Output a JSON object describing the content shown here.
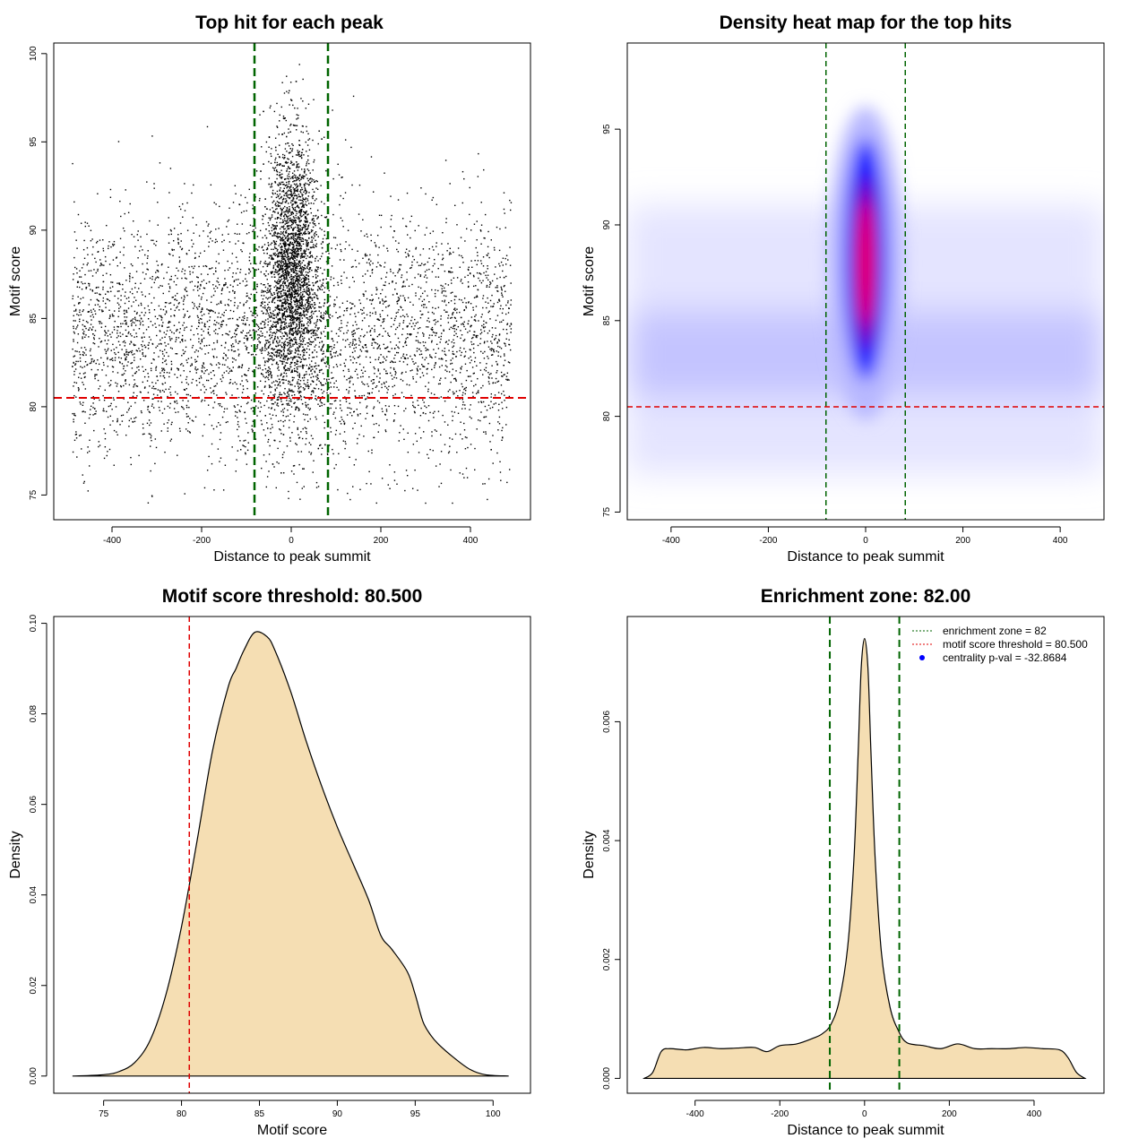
{
  "chart_data": [
    {
      "type": "scatter",
      "title": "Top hit for each peak",
      "xlabel": "Distance to peak summit",
      "ylabel": "Motif score",
      "xlim": [
        -530,
        534
      ],
      "ylim": [
        73.6,
        100.6
      ],
      "xticks": [
        "-400",
        "-200",
        "0",
        "200",
        "400"
      ],
      "xtick_values": [
        -400,
        -200,
        0,
        200,
        400
      ],
      "yticks": [
        "75",
        "80",
        "85",
        "90",
        "95",
        "100"
      ],
      "ytick_values": [
        75,
        80,
        85,
        90,
        95,
        100
      ],
      "point_cloud": {
        "background": {
          "x_range": [
            -490,
            490
          ],
          "y_mean": 84,
          "y_sd": 3.6,
          "count": 4200
        },
        "center": {
          "x_mean": 0,
          "x_sd": 28,
          "y_mean": 87.5,
          "y_sd": 4,
          "count": 3200
        }
      },
      "vlines": [
        -82,
        82
      ],
      "hline": 80.5,
      "colors": {
        "points": "#000000",
        "vline": "#006400",
        "hline": "#e00000"
      }
    },
    {
      "type": "heatmap",
      "title": "Density heat map for the top hits",
      "xlabel": "Distance to peak summit",
      "ylabel": "Motif score",
      "xlim": [
        -490,
        490
      ],
      "ylim": [
        74.6,
        99.5
      ],
      "xticks": [
        "-400",
        "-200",
        "0",
        "200",
        "400"
      ],
      "xtick_values": [
        -400,
        -200,
        0,
        200,
        400
      ],
      "yticks": [
        "75",
        "80",
        "85",
        "90",
        "95"
      ],
      "ytick_values": [
        75,
        80,
        85,
        90,
        95
      ],
      "hotspot": {
        "x": 0,
        "y": 88
      },
      "vlines": [
        -81.5,
        81.5
      ],
      "hline": 80.5,
      "colors": {
        "low": "#ffffff",
        "mid": "#0000ff",
        "high": "#ff0000"
      }
    },
    {
      "type": "area",
      "title": "Motif score threshold: 80.500",
      "xlabel": "Motif score",
      "ylabel": "Density",
      "xlim": [
        71.8,
        102.4
      ],
      "ylim": [
        -0.0038,
        0.1015
      ],
      "xticks": [
        "75",
        "80",
        "85",
        "90",
        "95",
        "100"
      ],
      "xtick_values": [
        75,
        80,
        85,
        90,
        95,
        100
      ],
      "yticks": [
        "0.00",
        "0.02",
        "0.04",
        "0.06",
        "0.08",
        "0.10"
      ],
      "ytick_values": [
        0,
        0.02,
        0.04,
        0.06,
        0.08,
        0.1
      ],
      "x": [
        73,
        75,
        76,
        77,
        78,
        79,
        80,
        81,
        82,
        83,
        83.5,
        84,
        84.7,
        85.5,
        86,
        87,
        88,
        89,
        90,
        91,
        92,
        92.8,
        93.5,
        94.5,
        95,
        95.5,
        96,
        96.5,
        97.5,
        98.5,
        99.5,
        101
      ],
      "y": [
        0,
        0.0003,
        0.001,
        0.003,
        0.008,
        0.018,
        0.033,
        0.052,
        0.072,
        0.086,
        0.09,
        0.094,
        0.098,
        0.097,
        0.094,
        0.085,
        0.074,
        0.064,
        0.055,
        0.047,
        0.039,
        0.031,
        0.028,
        0.023,
        0.018,
        0.012,
        0.009,
        0.007,
        0.004,
        0.0015,
        0.0003,
        0
      ],
      "vline": 80.5,
      "colors": {
        "fill": "#f5deb3",
        "vline": "#e00000"
      }
    },
    {
      "type": "area",
      "title": "Enrichment zone: 82.00",
      "xlabel": "Distance to peak summit",
      "ylabel": "Density",
      "xlim": [
        -560,
        565
      ],
      "ylim": [
        -0.00025,
        0.00777
      ],
      "xticks": [
        "-400",
        "-200",
        "0",
        "200",
        "400"
      ],
      "xtick_values": [
        -400,
        -200,
        0,
        200,
        400
      ],
      "yticks": [
        "0.000",
        "0.002",
        "0.004",
        "0.006"
      ],
      "ytick_values": [
        0,
        0.002,
        0.004,
        0.006
      ],
      "x": [
        -520,
        -500,
        -480,
        -460,
        -420,
        -380,
        -340,
        -300,
        -260,
        -230,
        -200,
        -160,
        -120,
        -100,
        -80,
        -60,
        -40,
        -25,
        -15,
        -8,
        0,
        8,
        15,
        25,
        40,
        60,
        80,
        100,
        140,
        180,
        220,
        260,
        300,
        340,
        380,
        420,
        460,
        480,
        500,
        520
      ],
      "y": [
        0,
        0.0001,
        0.00045,
        0.0005,
        0.00048,
        0.00052,
        0.0005,
        0.00051,
        0.00052,
        0.00045,
        0.00055,
        0.00058,
        0.00068,
        0.00075,
        0.0009,
        0.0013,
        0.0022,
        0.0037,
        0.0055,
        0.0069,
        0.0074,
        0.0069,
        0.0055,
        0.0037,
        0.0021,
        0.0012,
        0.0008,
        0.0006,
        0.00055,
        0.0005,
        0.00058,
        0.0005,
        0.0005,
        0.0005,
        0.00052,
        0.0005,
        0.00048,
        0.00035,
        0.0001,
        0
      ],
      "vlines": [
        -82,
        82
      ],
      "colors": {
        "fill": "#f5deb3",
        "vline": "#006400"
      },
      "legend": {
        "position": "top-right",
        "entries": [
          {
            "label": "enrichment zone = 82",
            "color": "#006400",
            "style": "dotted"
          },
          {
            "label": "motif score threshold = 80.500",
            "color": "#e00000",
            "style": "dotted"
          },
          {
            "label": "centrality p-val = -32.8684",
            "color": "#0000ff",
            "style": "point"
          }
        ]
      }
    }
  ]
}
